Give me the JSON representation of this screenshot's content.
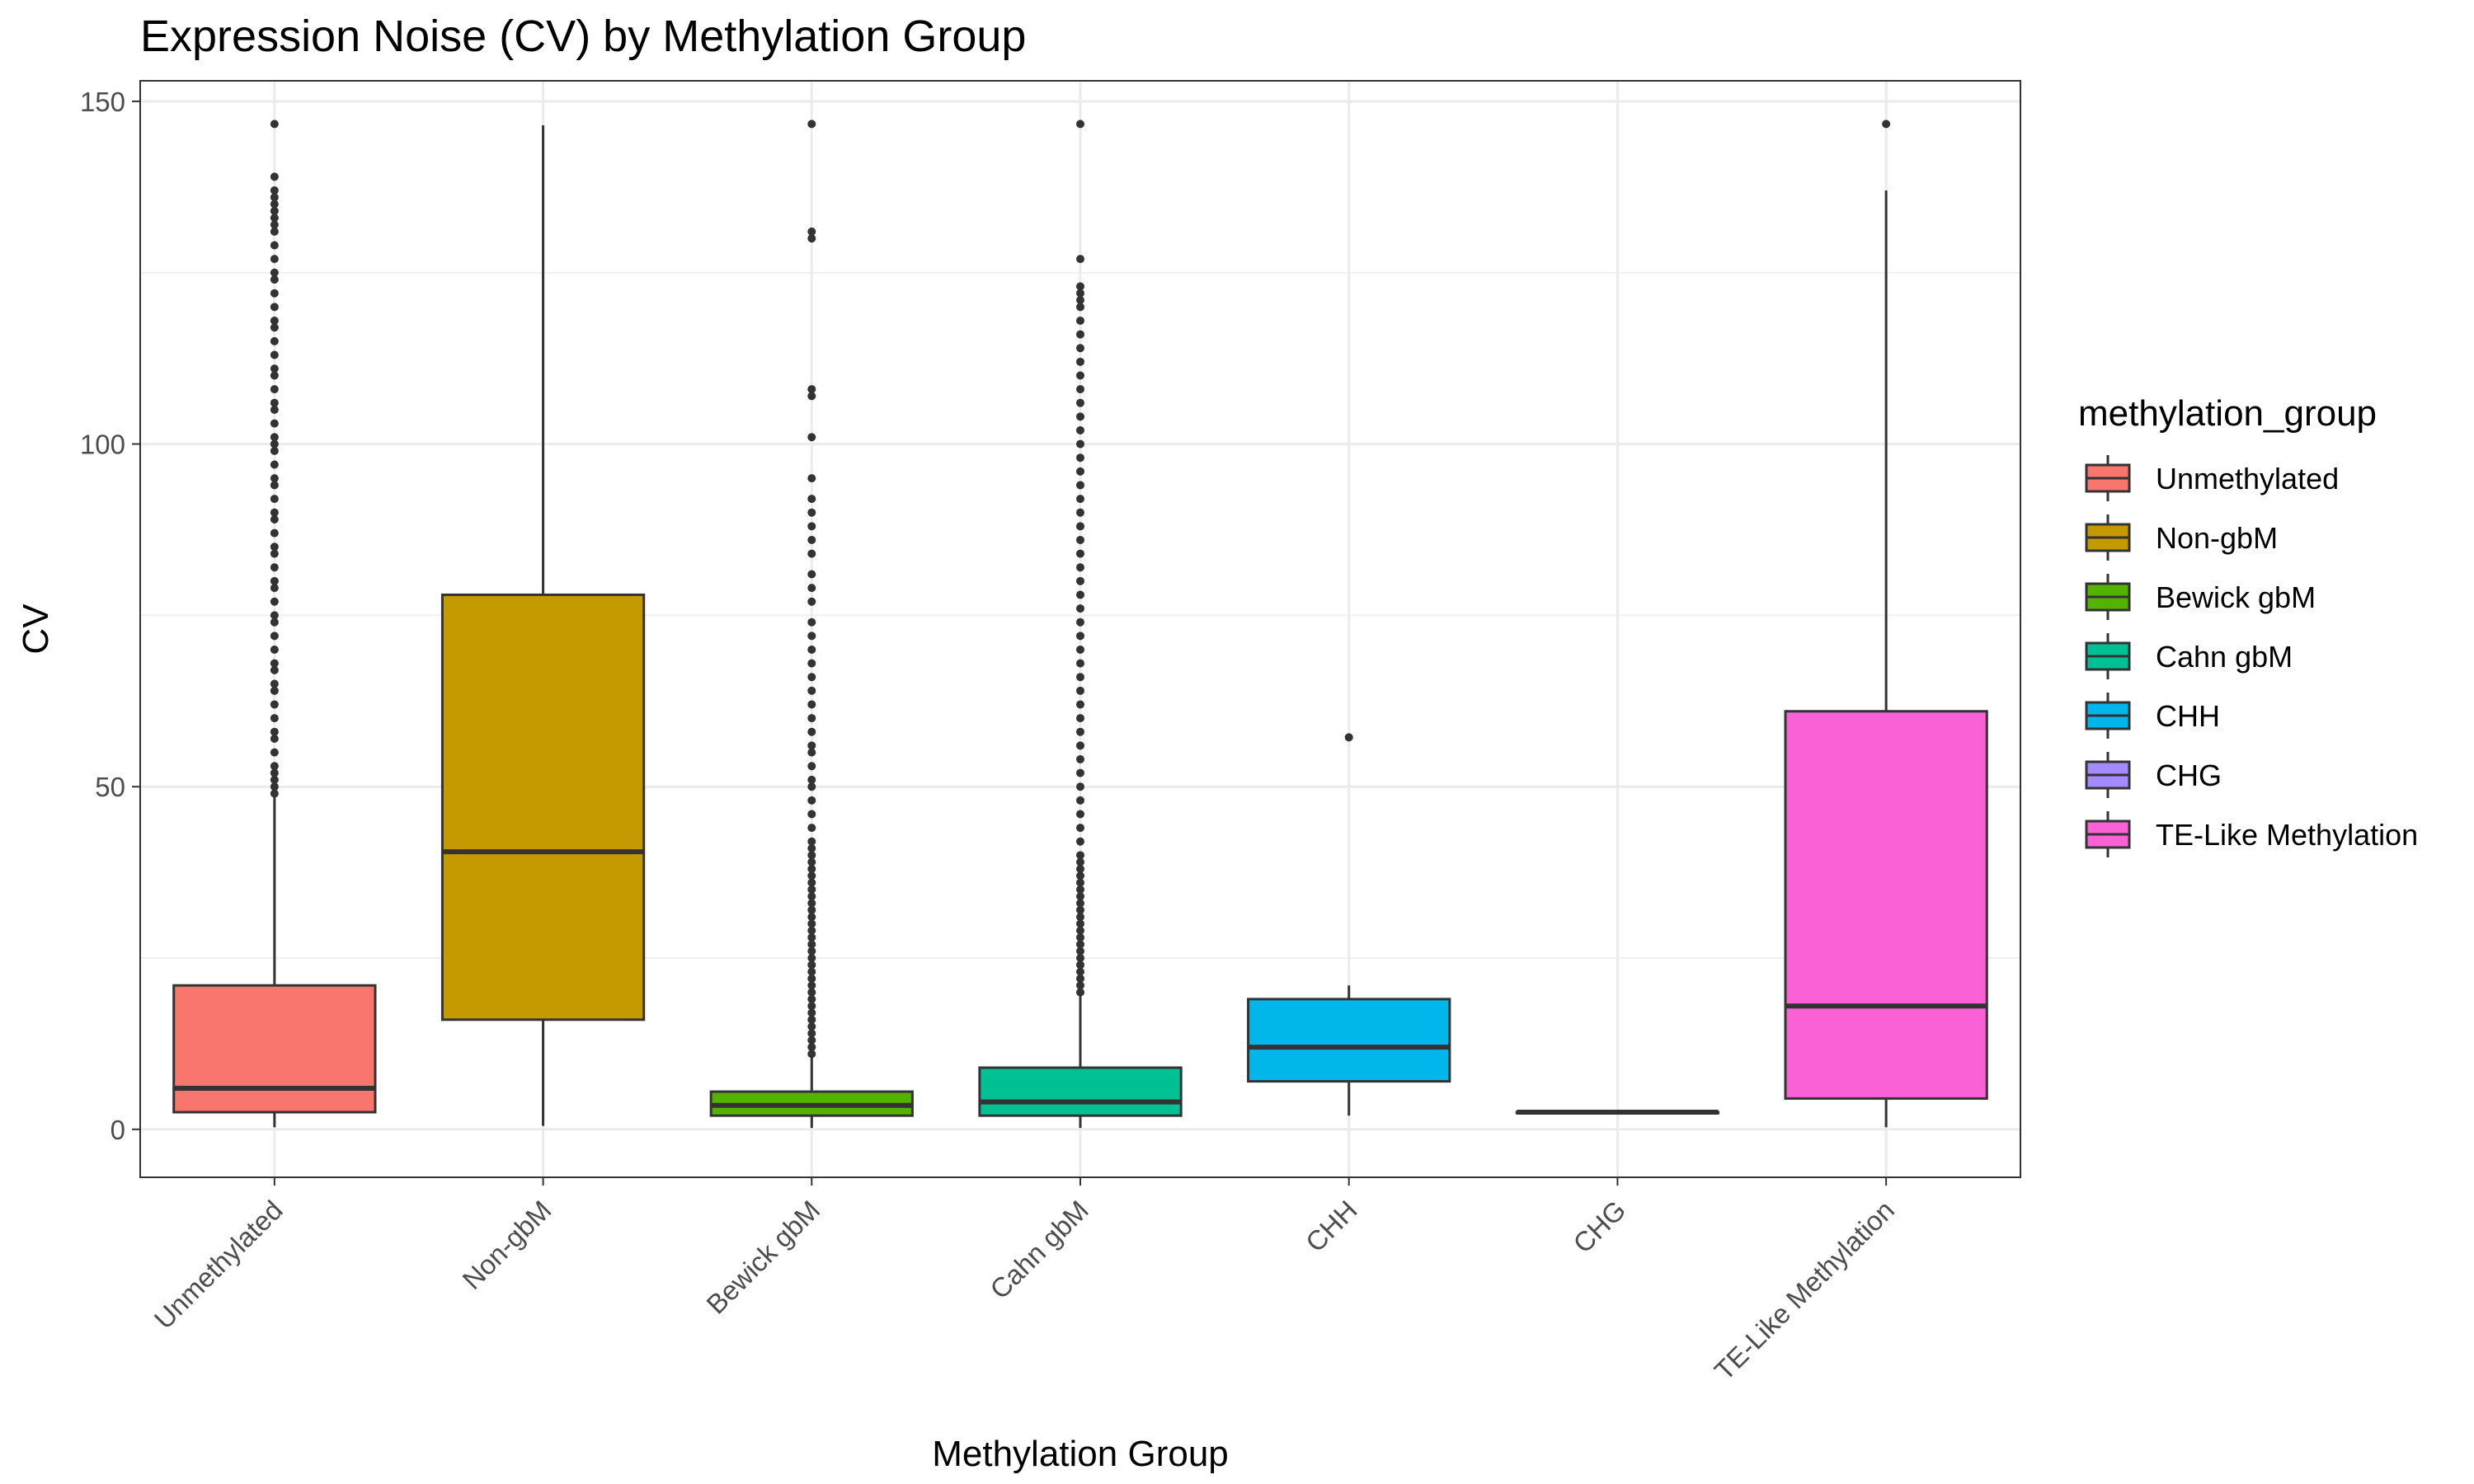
{
  "chart_data": {
    "type": "boxplot",
    "title": "Expression Noise (CV) by Methylation Group",
    "xlabel": "Methylation Group",
    "ylabel": "CV",
    "ylim": [
      -7,
      153
    ],
    "yticks": [
      0,
      50,
      100,
      150
    ],
    "grid": true,
    "legend": {
      "title": "methylation_group",
      "placement": "right"
    },
    "categories": [
      "Unmethylated",
      "Non-gbM",
      "Bewick gbM",
      "Cahn gbM",
      "CHH",
      "CHG",
      "TE-Like Methylation"
    ],
    "series": [
      {
        "name": "Unmethylated",
        "color": "#F8766D",
        "min": 0.3,
        "q1": 2.5,
        "median": 6,
        "q3": 21,
        "max": 49,
        "outliers": [
          49,
          50,
          51,
          52,
          53,
          55,
          57,
          58,
          60,
          62,
          64,
          65,
          67,
          68,
          70,
          72,
          74,
          75,
          77,
          79,
          80,
          82,
          84,
          85,
          87,
          89,
          90,
          92,
          94,
          95,
          97,
          99,
          100,
          101,
          103,
          105,
          106,
          108,
          110,
          111,
          113,
          115,
          117,
          118,
          120,
          122,
          124,
          125,
          127,
          129,
          131,
          132,
          133,
          134,
          135,
          136,
          137,
          139,
          146.7
        ]
      },
      {
        "name": "Non-gbM",
        "color": "#C49A00",
        "min": 0.5,
        "q1": 16,
        "median": 40.5,
        "q3": 78,
        "max": 146.5,
        "outliers": []
      },
      {
        "name": "Bewick gbM",
        "color": "#53B400",
        "min": 0.2,
        "q1": 2,
        "median": 3.5,
        "q3": 5.5,
        "max": 10.5,
        "outliers": [
          11,
          12,
          13,
          14,
          15,
          16,
          17,
          18,
          19,
          20,
          21,
          22,
          23,
          24,
          25,
          26,
          27,
          28,
          29,
          30,
          31,
          32,
          33,
          34,
          35,
          36,
          37,
          38,
          39,
          40,
          41,
          42,
          44,
          46,
          48,
          50,
          51,
          53,
          55,
          56,
          58,
          60,
          62,
          64,
          66,
          68,
          70,
          72,
          74,
          77,
          79,
          81,
          84,
          86,
          88,
          90,
          92,
          95,
          101,
          107,
          108,
          130,
          131,
          146.7
        ]
      },
      {
        "name": "Cahn gbM",
        "color": "#00C094",
        "min": 0.2,
        "q1": 2,
        "median": 4,
        "q3": 9,
        "max": 19.5,
        "outliers": [
          20,
          21,
          22,
          23,
          24,
          25,
          26,
          27,
          28,
          29,
          30,
          31,
          32,
          33,
          34,
          35,
          36,
          37,
          38,
          39,
          40,
          42,
          44,
          46,
          48,
          50,
          52,
          54,
          56,
          58,
          60,
          62,
          64,
          66,
          68,
          70,
          72,
          74,
          76,
          78,
          80,
          82,
          84,
          86,
          88,
          90,
          92,
          94,
          96,
          98,
          100,
          102,
          104,
          106,
          108,
          110,
          112,
          114,
          116,
          118,
          120,
          121,
          122,
          123,
          127,
          146.7
        ]
      },
      {
        "name": "CHH",
        "color": "#00B6EB",
        "min": 2,
        "q1": 7,
        "median": 12,
        "q3": 19,
        "max": 21,
        "outliers": [
          57.2
        ]
      },
      {
        "name": "CHG",
        "color": "#A58AFF",
        "min": 2.5,
        "q1": 2.5,
        "median": 2.5,
        "q3": 2.5,
        "max": 2.5,
        "outliers": []
      },
      {
        "name": "TE-Like Methylation",
        "color": "#FB61D7",
        "min": 0.3,
        "q1": 4.5,
        "median": 18,
        "q3": 61,
        "max": 137,
        "outliers": [
          146.7
        ]
      }
    ]
  }
}
